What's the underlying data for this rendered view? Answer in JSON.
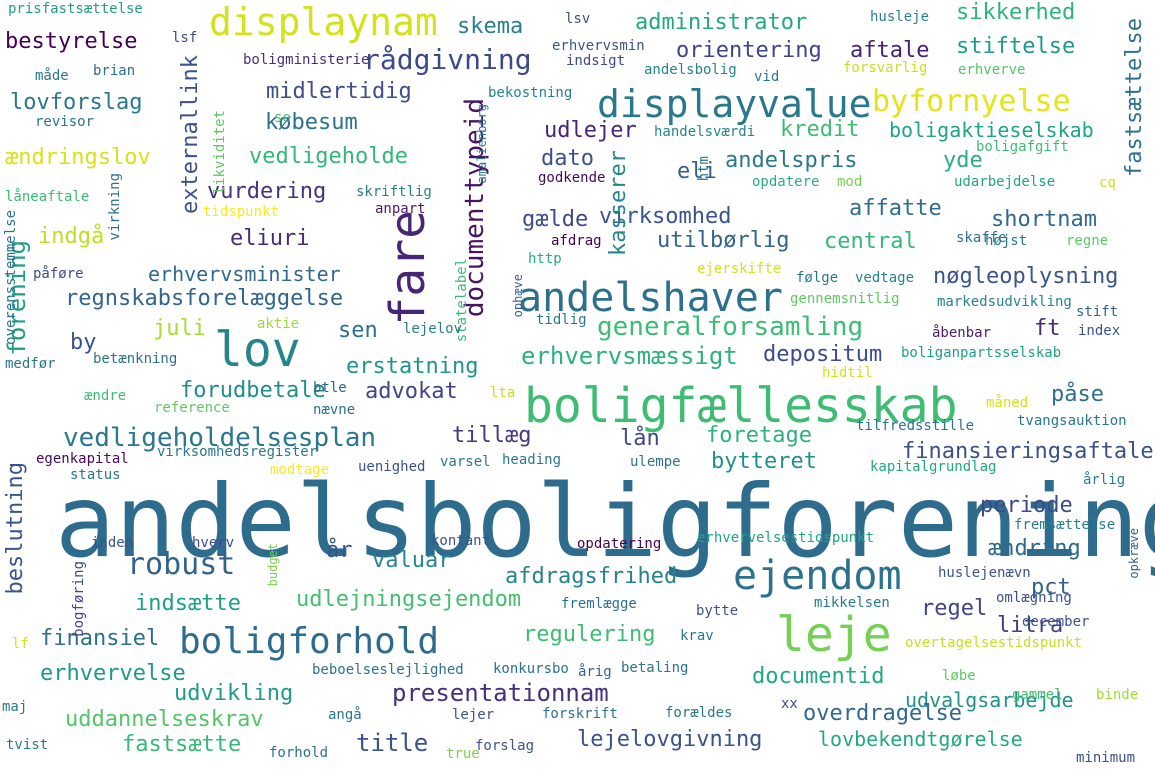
{
  "words": [
    {
      "text": "andelsboligforening",
      "color": "#2e6c8e"
    },
    {
      "text": "boligfællesskab",
      "color": "#3fbc73"
    },
    {
      "text": "andelshaver",
      "color": "#2d708e"
    },
    {
      "text": "leje",
      "color": "#75d054"
    },
    {
      "text": "ejendom",
      "color": "#2c718e"
    },
    {
      "text": "lov",
      "color": "#25848e"
    },
    {
      "text": "fare",
      "color": "#482677"
    },
    {
      "text": "displayvalue",
      "color": "#2a788e"
    },
    {
      "text": "displaynam",
      "color": "#d2e21b"
    },
    {
      "text": "boligforhold",
      "color": "#2f6b8e"
    },
    {
      "text": "byfornyelse",
      "color": "#e5e419"
    },
    {
      "text": "generalforsamling",
      "color": "#3dbc74"
    },
    {
      "text": "robust",
      "color": "#33638d"
    },
    {
      "text": "rådgivning",
      "color": "#3e4989"
    },
    {
      "text": "vedligeholdelsesplan",
      "color": "#2a778e"
    },
    {
      "text": "documenttypeid",
      "color": "#471365"
    },
    {
      "text": "erhvervsmæssigt",
      "color": "#2db27d"
    },
    {
      "text": "presentationnam",
      "color": "#46307e"
    },
    {
      "text": "nøgleoplysning",
      "color": "#39568c"
    },
    {
      "text": "udlejningsejendom",
      "color": "#44bf70"
    },
    {
      "text": "afdragsfrihed",
      "color": "#25838e"
    },
    {
      "text": "regnskabsforelæggelse",
      "color": "#32658e"
    },
    {
      "text": "finansieringsaftale",
      "color": "#3c508b"
    },
    {
      "text": "erhvervsminister",
      "color": "#31688e"
    },
    {
      "text": "lejelovgivning",
      "color": "#3b528b"
    },
    {
      "text": "uddannelseskrav",
      "color": "#52c569"
    },
    {
      "text": "lovbekendtgørelse",
      "color": "#22a884"
    },
    {
      "text": "vedligeholde",
      "color": "#35b779"
    },
    {
      "text": "udvalgsarbejde",
      "color": "#20928c"
    },
    {
      "text": "regulering",
      "color": "#3fbc73"
    },
    {
      "text": "documentid",
      "color": "#22a884"
    },
    {
      "text": "overdragelse",
      "color": "#31688e"
    },
    {
      "text": "udvikling",
      "color": "#1e9c89"
    },
    {
      "text": "erhvervelse",
      "color": "#1f988b"
    },
    {
      "text": "fastsætte",
      "color": "#37b878"
    },
    {
      "text": "title",
      "color": "#3b528b"
    },
    {
      "text": "administrator",
      "color": "#22a884"
    },
    {
      "text": "orientering",
      "color": "#414487"
    },
    {
      "text": "aftale",
      "color": "#481f70"
    },
    {
      "text": "stiftelse",
      "color": "#1e9b8a"
    },
    {
      "text": "sikkerhed",
      "color": "#2fb47c"
    },
    {
      "text": "skema",
      "color": "#287d8e"
    },
    {
      "text": "bestyrelse",
      "color": "#440154"
    },
    {
      "text": "lovforslag",
      "color": "#2a788e"
    },
    {
      "text": "midlertidig",
      "color": "#3d4e8a"
    },
    {
      "text": "købesum",
      "color": "#2c718e"
    },
    {
      "text": "udlejer",
      "color": "#482475"
    },
    {
      "text": "kredit",
      "color": "#3fbc73"
    },
    {
      "text": "boligaktieselskab",
      "color": "#20a386"
    },
    {
      "text": "andelspris",
      "color": "#2a788e"
    },
    {
      "text": "dato",
      "color": "#3b528b"
    },
    {
      "text": "eli",
      "color": "#355f8d"
    },
    {
      "text": "yde",
      "color": "#29af7f"
    },
    {
      "text": "affatte",
      "color": "#2f6c8e"
    },
    {
      "text": "shortnam",
      "color": "#31688e"
    },
    {
      "text": "virksomhed",
      "color": "#39558c"
    },
    {
      "text": "gælde",
      "color": "#3f4889"
    },
    {
      "text": "utilbørlig",
      "color": "#33638d"
    },
    {
      "text": "central",
      "color": "#35b779"
    },
    {
      "text": "eliuri",
      "color": "#472c7a"
    },
    {
      "text": "vurdering",
      "color": "#46337f"
    },
    {
      "text": "indgå",
      "color": "#bddf26"
    },
    {
      "text": "juli",
      "color": "#a8db34"
    },
    {
      "text": "sen",
      "color": "#2d708e"
    },
    {
      "text": "by",
      "color": "#3b528b"
    },
    {
      "text": "depositum",
      "color": "#3e4a89"
    },
    {
      "text": "erstatning",
      "color": "#1f958b"
    },
    {
      "text": "ændringslov",
      "color": "#d8e219"
    },
    {
      "text": "forudbetale",
      "color": "#228c8d"
    },
    {
      "text": "advokat",
      "color": "#414487"
    },
    {
      "text": "tillæg",
      "color": "#443983"
    },
    {
      "text": "lån",
      "color": "#3f4889"
    },
    {
      "text": "foretage",
      "color": "#2db27d"
    },
    {
      "text": "bytteret",
      "color": "#21918c"
    },
    {
      "text": "påse",
      "color": "#2e6e8e"
    },
    {
      "text": "periode",
      "color": "#3e4989"
    },
    {
      "text": "ændring",
      "color": "#31688e"
    },
    {
      "text": "år",
      "color": "#3a548c"
    },
    {
      "text": "valuar",
      "color": "#24868e"
    },
    {
      "text": "indsætte",
      "color": "#1f9e89"
    },
    {
      "text": "regel",
      "color": "#414487"
    },
    {
      "text": "pct",
      "color": "#33638d"
    },
    {
      "text": "litra",
      "color": "#423f85"
    },
    {
      "text": "finansiel",
      "color": "#2e6f8e"
    },
    {
      "text": "forening",
      "color": "#1f9e89"
    },
    {
      "text": "externallink",
      "color": "#3b528b"
    },
    {
      "text": "beslutning",
      "color": "#3a548c"
    },
    {
      "text": "kasserer",
      "color": "#24878e"
    },
    {
      "text": "fastsættelse",
      "color": "#2d708e"
    },
    {
      "text": "ft",
      "color": "#482878"
    },
    {
      "text": "prisfastsættelse",
      "color": "#1f9e89"
    },
    {
      "text": "lsf",
      "color": "#3e4a89"
    },
    {
      "text": "lsv",
      "color": "#3b528b"
    },
    {
      "text": "erhvervsmin",
      "color": "#3b528b"
    },
    {
      "text": "indsigt",
      "color": "#3e4a89"
    },
    {
      "text": "husleje",
      "color": "#26828e"
    },
    {
      "text": "boligministerie",
      "color": "#472d7b"
    },
    {
      "text": "andelsbolig",
      "color": "#25848e"
    },
    {
      "text": "forsvarlig",
      "color": "#c8e020"
    },
    {
      "text": "vid",
      "color": "#2a788e"
    },
    {
      "text": "erhverve",
      "color": "#52c569"
    },
    {
      "text": "måde",
      "color": "#2a788e"
    },
    {
      "text": "brian",
      "color": "#2e6e8e"
    },
    {
      "text": "revisor",
      "color": "#2c728e"
    },
    {
      "text": "bekostning",
      "color": "#25838e"
    },
    {
      "text": "se",
      "color": "#3fbc73"
    },
    {
      "text": "handelsværdi",
      "color": "#25858e"
    },
    {
      "text": "boligafgift",
      "color": "#3fbc73"
    },
    {
      "text": "likviditet",
      "color": "#5ec962"
    },
    {
      "text": "amalienborg",
      "color": "#2a788e"
    },
    {
      "text": "htm",
      "color": "#2a788e"
    },
    {
      "text": "godkende",
      "color": "#46085c"
    },
    {
      "text": "opdatere",
      "color": "#29af7f"
    },
    {
      "text": "mod",
      "color": "#7ad151"
    },
    {
      "text": "udarbejdelse",
      "color": "#20a486"
    },
    {
      "text": "cq",
      "color": "#d5e21a"
    },
    {
      "text": "låneaftale",
      "color": "#3bbb75"
    },
    {
      "text": "virkning",
      "color": "#2c728e"
    },
    {
      "text": "skriftlig",
      "color": "#287d8e"
    },
    {
      "text": "tidspunkt",
      "color": "#fde725"
    },
    {
      "text": "anpart",
      "color": "#481b6d"
    },
    {
      "text": "afdrag",
      "color": "#440154"
    },
    {
      "text": "skaffe",
      "color": "#2c728e"
    },
    {
      "text": "højst",
      "color": "#2a788e"
    },
    {
      "text": "regne",
      "color": "#5ec962"
    },
    {
      "text": "http",
      "color": "#26ad81"
    },
    {
      "text": "ophæve",
      "color": "#33638d"
    },
    {
      "text": "statelabel",
      "color": "#3bbb75"
    },
    {
      "text": "ejerskifte",
      "color": "#d5e21a"
    },
    {
      "text": "påføre",
      "color": "#3e4989"
    },
    {
      "text": "følge",
      "color": "#2b758e"
    },
    {
      "text": "vedtage",
      "color": "#25838e"
    },
    {
      "text": "gennemsnitlig",
      "color": "#5ec962"
    },
    {
      "text": "markedsudvikling",
      "color": "#26828e"
    },
    {
      "text": "overensstemmelse",
      "color": "#2c728e"
    },
    {
      "text": "tidlig",
      "color": "#2a788e"
    },
    {
      "text": "stift",
      "color": "#33638d"
    },
    {
      "text": "index",
      "color": "#39568c"
    },
    {
      "text": "aktie",
      "color": "#a0da39"
    },
    {
      "text": "lejelov",
      "color": "#287d8e"
    },
    {
      "text": "åbenbar",
      "color": "#481b6d"
    },
    {
      "text": "betænkning",
      "color": "#2c728e"
    },
    {
      "text": "boliganpartsselskab",
      "color": "#1fa088"
    },
    {
      "text": "medfør",
      "color": "#2a788e"
    },
    {
      "text": "hidtil",
      "color": "#d5e21a"
    },
    {
      "text": "ændre",
      "color": "#3fbc73"
    },
    {
      "text": "btle",
      "color": "#33638d"
    },
    {
      "text": "lta",
      "color": "#c8e020"
    },
    {
      "text": "reference",
      "color": "#5ec962"
    },
    {
      "text": "nævne",
      "color": "#2c728e"
    },
    {
      "text": "måned",
      "color": "#d5e21a"
    },
    {
      "text": "tilfredsstille",
      "color": "#2c728e"
    },
    {
      "text": "tvangsauktion",
      "color": "#2a788e"
    },
    {
      "text": "egenkapital",
      "color": "#46085c"
    },
    {
      "text": "virksomhedsregister",
      "color": "#2a788e"
    },
    {
      "text": "heading",
      "color": "#2a788e"
    },
    {
      "text": "ulempe",
      "color": "#2c728e"
    },
    {
      "text": "status",
      "color": "#2a788e"
    },
    {
      "text": "modtage",
      "color": "#fde725"
    },
    {
      "text": "uenighed",
      "color": "#3b528b"
    },
    {
      "text": "varsel",
      "color": "#2a788e"
    },
    {
      "text": "kapitalgrundlag",
      "color": "#22a884"
    },
    {
      "text": "årlig",
      "color": "#26828e"
    },
    {
      "text": "fremsættelse",
      "color": "#287d8e"
    },
    {
      "text": "inden",
      "color": "#3b528b"
    },
    {
      "text": "hverv",
      "color": "#3e4a89"
    },
    {
      "text": "kontant",
      "color": "#3b528b"
    },
    {
      "text": "opdatering",
      "color": "#440154"
    },
    {
      "text": "erhvervelsestidspunkt",
      "color": "#20a386"
    },
    {
      "text": "opkræve",
      "color": "#33638d"
    },
    {
      "text": "budget",
      "color": "#7ad151"
    },
    {
      "text": "huslejenævn",
      "color": "#39568c"
    },
    {
      "text": "bogføring",
      "color": "#3e4a89"
    },
    {
      "text": "fremlægge",
      "color": "#2c728e"
    },
    {
      "text": "bytte",
      "color": "#3b528b"
    },
    {
      "text": "mikkelsen",
      "color": "#2a788e"
    },
    {
      "text": "omlægning",
      "color": "#3b528b"
    },
    {
      "text": "december",
      "color": "#3b528b"
    },
    {
      "text": "lf",
      "color": "#d5e21a"
    },
    {
      "text": "krav",
      "color": "#2a788e"
    },
    {
      "text": "overtagelsestidspunkt",
      "color": "#c8e020"
    },
    {
      "text": "beboelseslejlighed",
      "color": "#2c728e"
    },
    {
      "text": "konkursbo",
      "color": "#2c728e"
    },
    {
      "text": "årig",
      "color": "#33638d"
    },
    {
      "text": "betaling",
      "color": "#2c728e"
    },
    {
      "text": "løbe",
      "color": "#5ec962"
    },
    {
      "text": "gammel",
      "color": "#3fbc73"
    },
    {
      "text": "binde",
      "color": "#a0da39"
    },
    {
      "text": "maj",
      "color": "#2a788e"
    },
    {
      "text": "angå",
      "color": "#2a788e"
    },
    {
      "text": "lejer",
      "color": "#3b528b"
    },
    {
      "text": "forskrift",
      "color": "#2c728e"
    },
    {
      "text": "xx",
      "color": "#3e4a89"
    },
    {
      "text": "forældes",
      "color": "#2a788e"
    },
    {
      "text": "tvist",
      "color": "#2a788e"
    },
    {
      "text": "forhold",
      "color": "#2c728e"
    },
    {
      "text": "true",
      "color": "#7ad151"
    },
    {
      "text": "forslag",
      "color": "#3b528b"
    },
    {
      "text": "minimum",
      "color": "#3b528b"
    }
  ]
}
